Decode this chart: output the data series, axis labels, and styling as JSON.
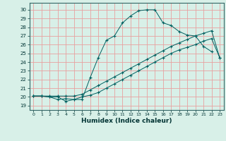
{
  "title": "",
  "xlabel": "Humidex (Indice chaleur)",
  "bg_color": "#d8f0e8",
  "grid_color": "#e8a0a0",
  "line_color": "#006060",
  "xlim": [
    -0.5,
    23.5
  ],
  "ylim": [
    18.5,
    30.8
  ],
  "xticks": [
    0,
    1,
    2,
    3,
    4,
    5,
    6,
    7,
    8,
    9,
    10,
    11,
    12,
    13,
    14,
    15,
    16,
    17,
    18,
    19,
    20,
    21,
    22,
    23
  ],
  "yticks": [
    19,
    20,
    21,
    22,
    23,
    24,
    25,
    26,
    27,
    28,
    29,
    30
  ],
  "line1_x": [
    0,
    1,
    2,
    3,
    4,
    5,
    6,
    7,
    8,
    9,
    10,
    11,
    12,
    13,
    14,
    15,
    16,
    17,
    18,
    19,
    20,
    21,
    22
  ],
  "line1_y": [
    20.1,
    20.1,
    20.0,
    20.0,
    19.5,
    19.7,
    19.7,
    22.2,
    24.5,
    26.5,
    27.0,
    28.5,
    29.3,
    29.9,
    30.0,
    30.0,
    28.5,
    28.2,
    27.5,
    27.1,
    27.0,
    25.8,
    25.2
  ],
  "line2_x": [
    0,
    1,
    2,
    3,
    4,
    5,
    6,
    7,
    8,
    9,
    10,
    11,
    12,
    13,
    14,
    15,
    16,
    17,
    18,
    19,
    20,
    21,
    22,
    23
  ],
  "line2_y": [
    20.1,
    20.1,
    20.0,
    19.7,
    19.8,
    19.7,
    20.0,
    20.2,
    20.5,
    21.0,
    21.5,
    22.0,
    22.5,
    23.0,
    23.5,
    24.0,
    24.5,
    25.0,
    25.4,
    25.7,
    26.0,
    26.4,
    26.7,
    24.5
  ],
  "line3_x": [
    0,
    1,
    2,
    3,
    4,
    5,
    6,
    7,
    8,
    9,
    10,
    11,
    12,
    13,
    14,
    15,
    16,
    17,
    18,
    19,
    20,
    21,
    22,
    23
  ],
  "line3_y": [
    20.1,
    20.1,
    20.1,
    20.1,
    20.1,
    20.1,
    20.3,
    20.8,
    21.3,
    21.8,
    22.3,
    22.8,
    23.3,
    23.8,
    24.3,
    24.8,
    25.3,
    25.8,
    26.2,
    26.6,
    27.0,
    27.3,
    27.6,
    24.5
  ]
}
